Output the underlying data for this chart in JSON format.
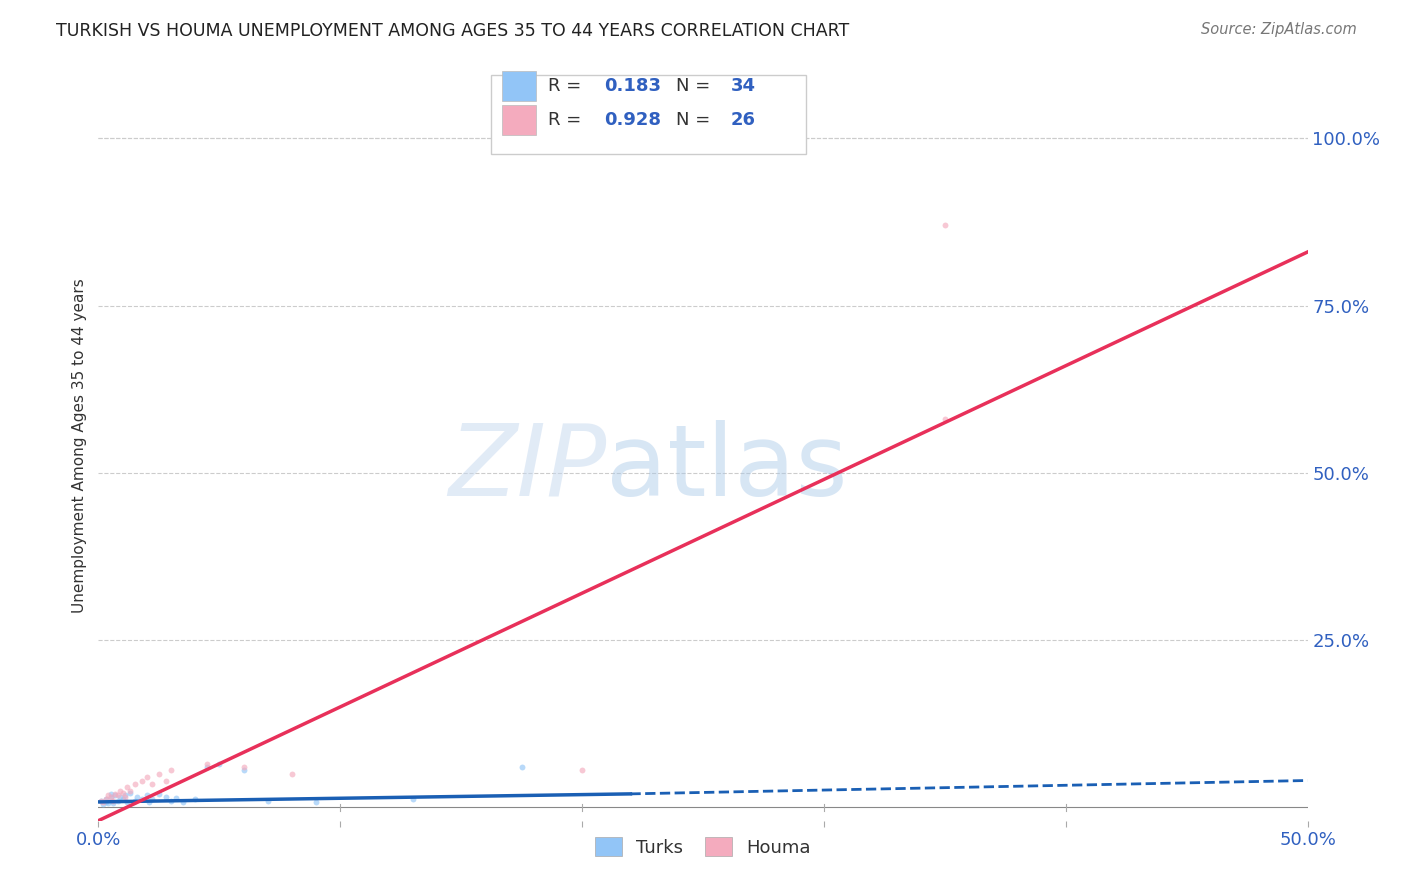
{
  "title": "TURKISH VS HOUMA UNEMPLOYMENT AMONG AGES 35 TO 44 YEARS CORRELATION CHART",
  "source": "Source: ZipAtlas.com",
  "ylabel": "Unemployment Among Ages 35 to 44 years",
  "xlim": [
    0.0,
    0.5
  ],
  "ylim": [
    -0.02,
    1.1
  ],
  "plot_ylim": [
    0.0,
    1.1
  ],
  "ytick_right_vals": [
    0.25,
    0.5,
    0.75,
    1.0
  ],
  "ytick_right_labels": [
    "25.0%",
    "50.0%",
    "75.0%",
    "100.0%"
  ],
  "turks_color": "#92c5f7",
  "houma_color": "#f4abbe",
  "turks_line_color": "#1a5fb4",
  "houma_line_color": "#e8305a",
  "R_turks": 0.183,
  "N_turks": 34,
  "R_houma": 0.928,
  "N_houma": 26,
  "turks_x": [
    0.001,
    0.002,
    0.003,
    0.003,
    0.004,
    0.005,
    0.005,
    0.006,
    0.007,
    0.008,
    0.009,
    0.01,
    0.011,
    0.012,
    0.013,
    0.015,
    0.016,
    0.018,
    0.02,
    0.021,
    0.022,
    0.025,
    0.028,
    0.03,
    0.032,
    0.035,
    0.04,
    0.045,
    0.05,
    0.06,
    0.07,
    0.09,
    0.13,
    0.175
  ],
  "turks_y": [
    0.01,
    0.005,
    0.008,
    0.012,
    0.007,
    0.015,
    0.02,
    0.006,
    0.018,
    0.01,
    0.015,
    0.012,
    0.018,
    0.008,
    0.022,
    0.01,
    0.015,
    0.012,
    0.018,
    0.008,
    0.012,
    0.02,
    0.016,
    0.01,
    0.014,
    0.008,
    0.012,
    0.06,
    0.065,
    0.055,
    0.01,
    0.008,
    0.012,
    0.06
  ],
  "houma_x": [
    0.001,
    0.002,
    0.003,
    0.004,
    0.005,
    0.006,
    0.007,
    0.008,
    0.009,
    0.01,
    0.011,
    0.012,
    0.013,
    0.015,
    0.018,
    0.02,
    0.022,
    0.025,
    0.028,
    0.03,
    0.045,
    0.06,
    0.08,
    0.2,
    0.35,
    0.35
  ],
  "houma_y": [
    0.01,
    0.008,
    0.012,
    0.018,
    0.015,
    0.01,
    0.02,
    0.018,
    0.025,
    0.022,
    0.015,
    0.03,
    0.025,
    0.035,
    0.04,
    0.045,
    0.035,
    0.05,
    0.04,
    0.055,
    0.065,
    0.06,
    0.05,
    0.055,
    0.87,
    0.58
  ],
  "turks_line": {
    "x0": 0.0,
    "y0": 0.008,
    "x1": 0.22,
    "y1": 0.02,
    "xd0": 0.22,
    "yd0": 0.02,
    "xd1": 0.5,
    "yd1": 0.04
  },
  "houma_line": {
    "x0": 0.0,
    "y0": -0.02,
    "x1": 0.5,
    "y1": 0.83
  },
  "background_color": "#ffffff",
  "grid_color": "#cccccc",
  "legend_color": "#3060c0",
  "marker_size": 18,
  "marker_alpha": 0.65
}
